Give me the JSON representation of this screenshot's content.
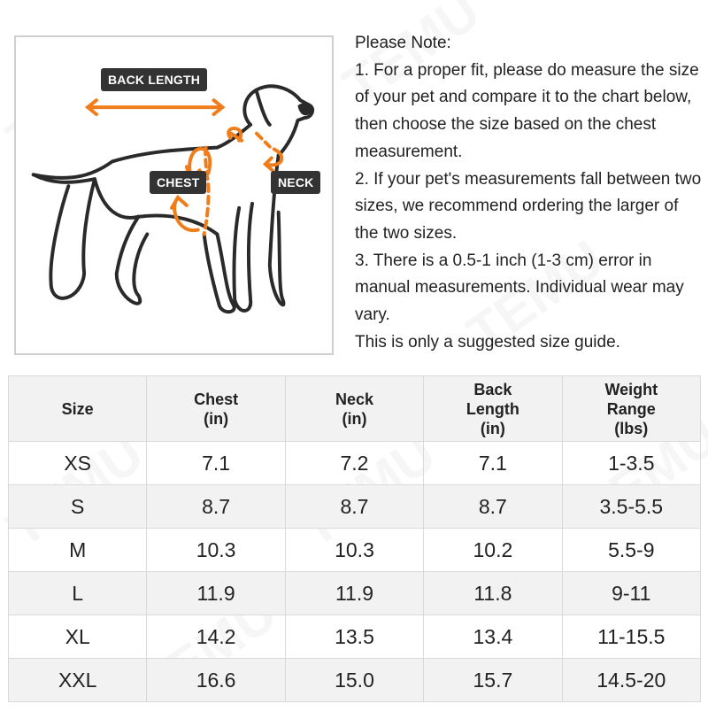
{
  "watermark": "TEMU",
  "colors": {
    "accent": "#f07d1a",
    "label_bg": "#333333",
    "row_alt": "#f2f2f2"
  },
  "diagram": {
    "back_length": "BACK LENGTH",
    "chest": "CHEST",
    "neck": "NECK"
  },
  "note": {
    "title": "Please Note:",
    "items": [
      "1. For a proper fit, please do measure the size of your pet and compare it to the chart below, then choose the size based on the chest measurement.",
      "2. If your pet's measurements fall between two sizes, we recommend ordering the larger of the two sizes.",
      "3. There is a 0.5-1 inch (1-3 cm) error in manual measurements. Individual wear may vary.",
      "This is only a suggested size guide."
    ]
  },
  "table": {
    "headers": [
      "Size",
      "Chest\n(in)",
      "Neck\n(in)",
      "Back\nLength\n(in)",
      "Weight\nRange\n(lbs)"
    ],
    "rows": [
      [
        "XS",
        "7.1",
        "7.2",
        "7.1",
        "1-3.5"
      ],
      [
        "S",
        "8.7",
        "8.7",
        "8.7",
        "3.5-5.5"
      ],
      [
        "M",
        "10.3",
        "10.3",
        "10.2",
        "5.5-9"
      ],
      [
        "L",
        "11.9",
        "11.9",
        "11.8",
        "9-11"
      ],
      [
        "XL",
        "14.2",
        "13.5",
        "13.4",
        "11-15.5"
      ],
      [
        "XXL",
        "16.6",
        "15.0",
        "15.7",
        "14.5-20"
      ]
    ]
  }
}
